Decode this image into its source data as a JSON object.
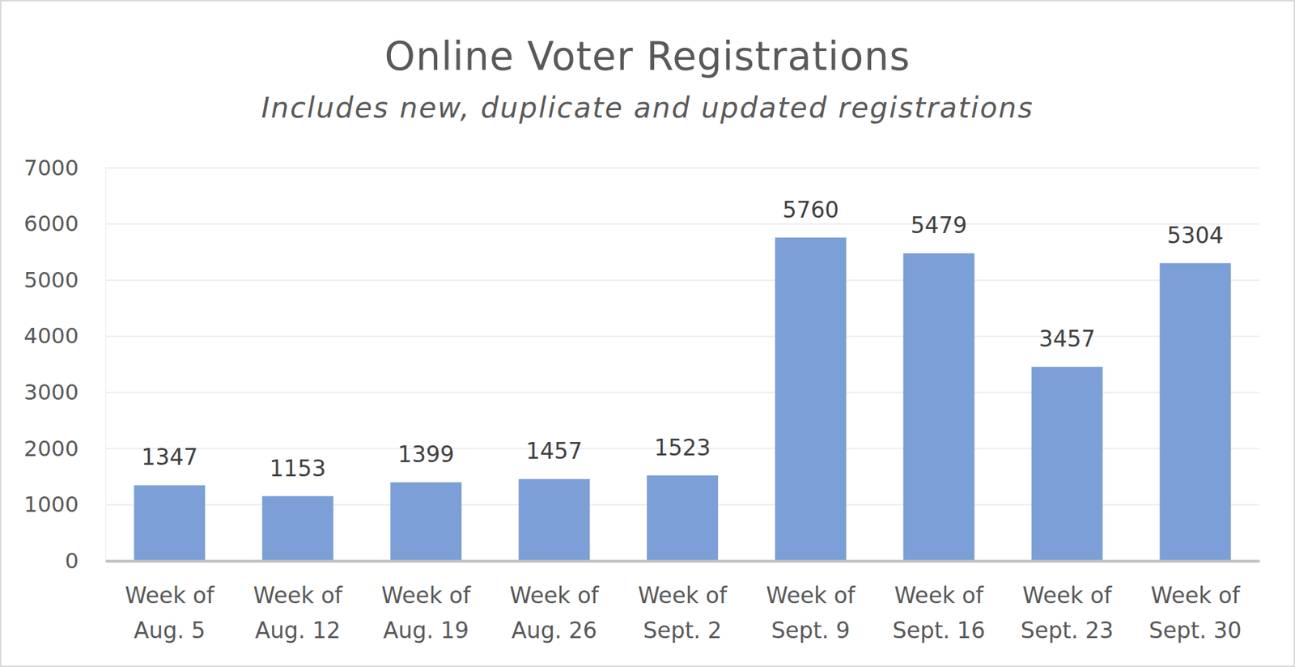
{
  "chart_data": {
    "type": "bar",
    "title": "Online Voter Registrations",
    "subtitle": "Includes new, duplicate and updated registrations",
    "categories": [
      "Week of Aug. 5",
      "Week of Aug. 12",
      "Week of Aug. 19",
      "Week of Aug. 26",
      "Week of Sept. 2",
      "Week of Sept. 9",
      "Week of Sept. 16",
      "Week of Sept. 23",
      "Week of Sept. 30"
    ],
    "values": [
      1347,
      1153,
      1399,
      1457,
      1523,
      5760,
      5479,
      3457,
      5304
    ],
    "color": "#7b9fd6",
    "ylim": [
      0,
      7000
    ],
    "yticks": [
      0,
      1000,
      2000,
      3000,
      4000,
      5000,
      6000,
      7000
    ],
    "grid": true,
    "data_labels": true
  }
}
